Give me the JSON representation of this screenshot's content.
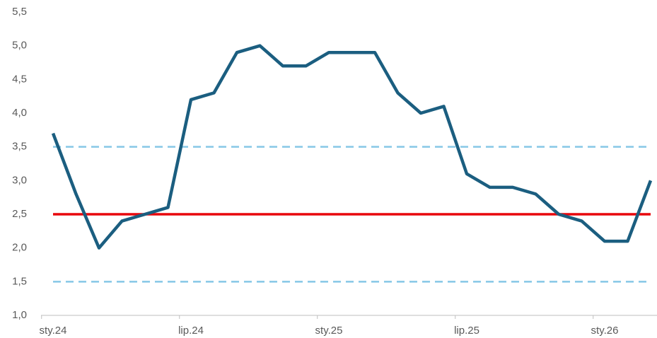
{
  "chart_data": {
    "type": "line",
    "categories": [
      "sty.24",
      null,
      null,
      null,
      null,
      null,
      "lip.24",
      null,
      null,
      null,
      null,
      null,
      "sty.25",
      null,
      null,
      null,
      null,
      null,
      "lip.25",
      null,
      null,
      null,
      null,
      null,
      "sty.26",
      null,
      null
    ],
    "series": [
      {
        "color": "#1b5e80",
        "values": [
          3.7,
          2.8,
          2.0,
          2.4,
          2.5,
          2.6,
          4.2,
          4.3,
          4.9,
          5.0,
          4.7,
          4.7,
          4.9,
          4.9,
          4.9,
          4.3,
          4.0,
          4.1,
          3.1,
          2.9,
          2.9,
          2.8,
          2.5,
          2.4,
          2.1,
          2.1,
          3.0
        ]
      }
    ],
    "reference_lines": [
      {
        "value": 2.5,
        "color": "#e8060c",
        "style": "solid"
      },
      {
        "value": 3.5,
        "color": "#86c8e6",
        "style": "dashed"
      },
      {
        "value": 1.5,
        "color": "#86c8e6",
        "style": "dashed"
      }
    ],
    "ylim": [
      1.0,
      5.5
    ],
    "yticks": [
      {
        "value": 1.0,
        "label": "1,0"
      },
      {
        "value": 1.5,
        "label": "1,5"
      },
      {
        "value": 2.0,
        "label": "2,0"
      },
      {
        "value": 2.5,
        "label": "2,5"
      },
      {
        "value": 3.0,
        "label": "3,0"
      },
      {
        "value": 3.5,
        "label": "3,5"
      },
      {
        "value": 4.0,
        "label": "4,0"
      },
      {
        "value": 4.5,
        "label": "4,5"
      },
      {
        "value": 5.0,
        "label": "5,0"
      },
      {
        "value": 5.5,
        "label": "5,5"
      }
    ],
    "grid": false
  }
}
